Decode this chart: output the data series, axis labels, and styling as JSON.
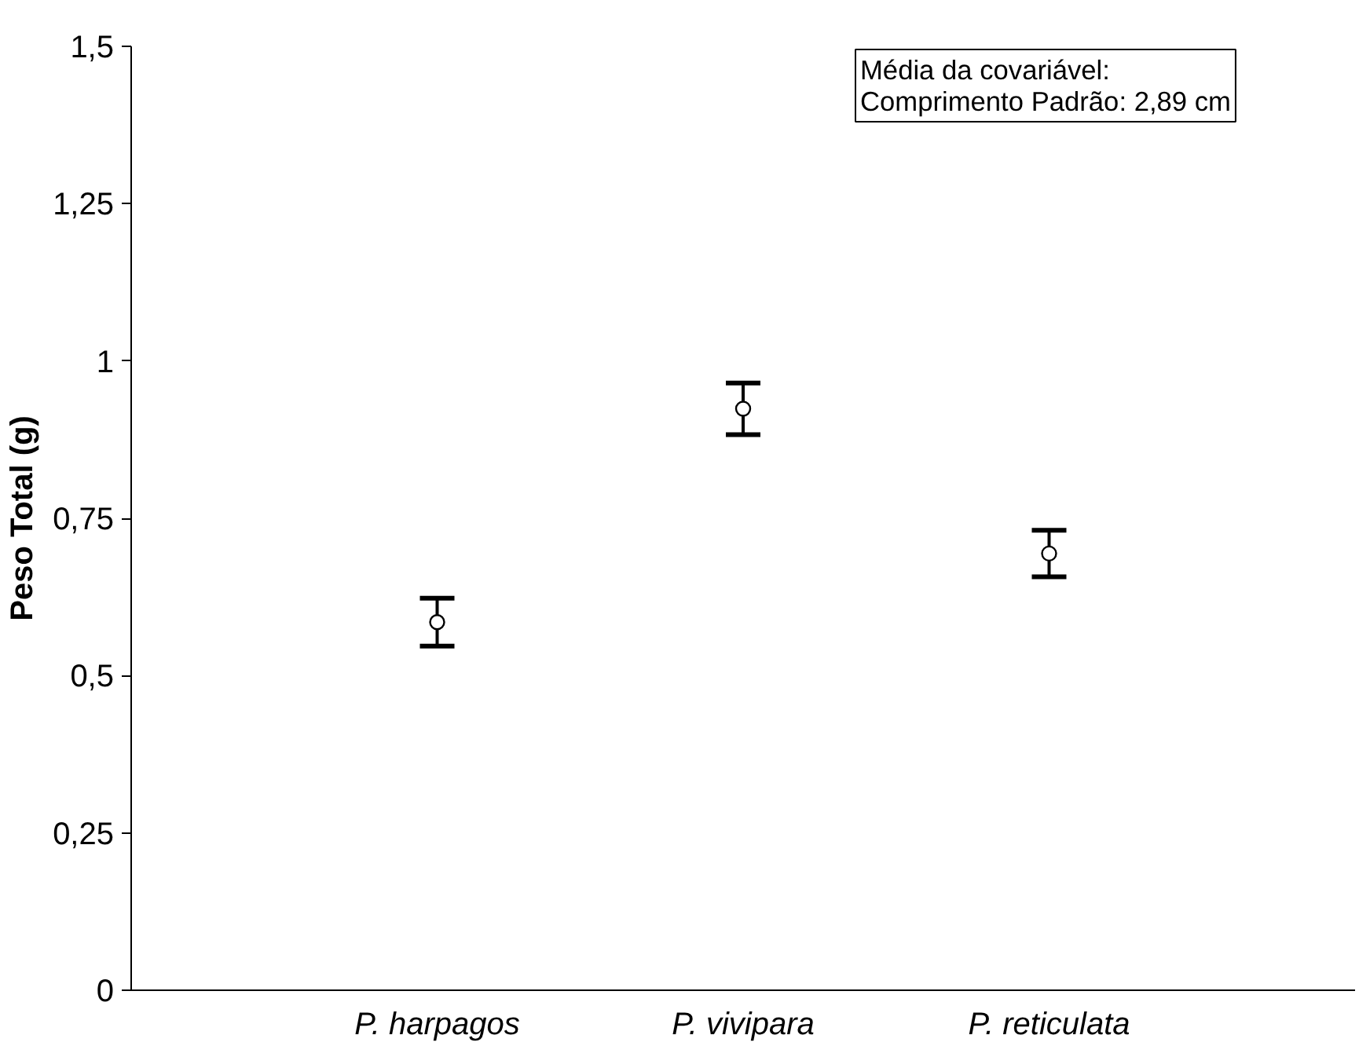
{
  "chart_data": {
    "type": "scatter",
    "ylabel": "Peso Total (g)",
    "categories": [
      "P. harpagos",
      "P. vivipara",
      "P. reticulata"
    ],
    "values": [
      0.585,
      0.924,
      0.694
    ],
    "errors": [
      0.038,
      0.041,
      0.037
    ],
    "color": "#000000",
    "marker": "circle",
    "grid": false,
    "ylim": [
      0,
      1.5
    ],
    "yticks": [
      0,
      {
        "value": 0.25,
        "label": "0,25"
      },
      {
        "value": 0.5,
        "label": "0,5"
      },
      {
        "value": 0.75,
        "label": "0,75"
      },
      1,
      {
        "value": 1.25,
        "label": "1,25"
      },
      {
        "value": 1.5,
        "label": "1,5"
      }
    ],
    "annotations": [
      "Média da covariável:",
      "Comprimento Padrão: 2,89 cm"
    ]
  }
}
